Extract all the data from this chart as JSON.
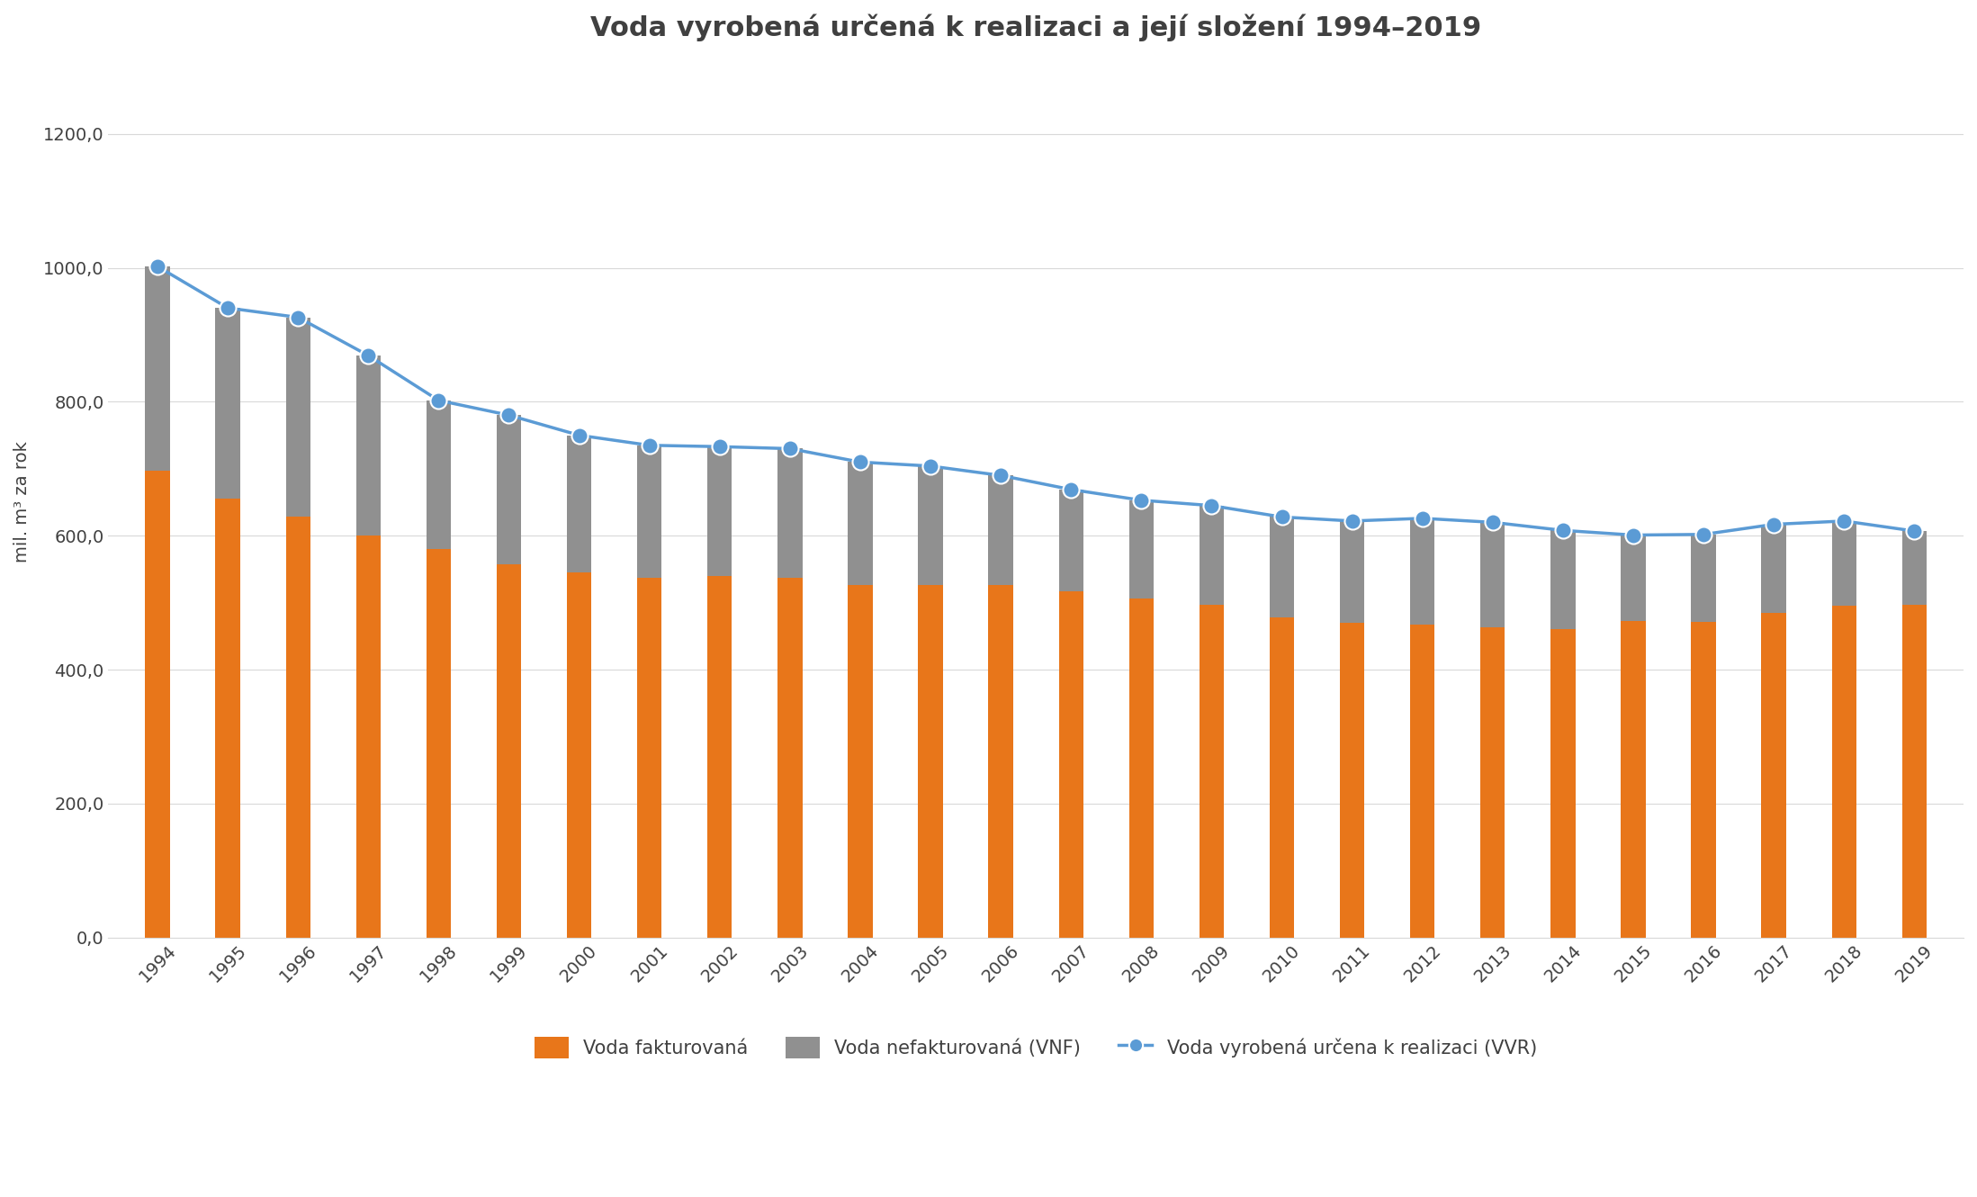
{
  "title": "Voda vyrobená určená k realizaci a její složení 1994–2019",
  "ylabel": "mil. m³ za rok",
  "years": [
    1994,
    1995,
    1996,
    1997,
    1998,
    1999,
    2000,
    2001,
    2002,
    2003,
    2004,
    2005,
    2006,
    2007,
    2008,
    2009,
    2010,
    2011,
    2012,
    2013,
    2014,
    2015,
    2016,
    2017,
    2018,
    2019
  ],
  "voda_fakturovana": [
    697,
    655,
    628,
    601,
    580,
    558,
    545,
    537,
    540,
    537,
    527,
    527,
    527,
    517,
    506,
    497,
    478,
    470,
    468,
    463,
    460,
    473,
    472,
    485,
    495,
    497
  ],
  "voda_nefakturovana": [
    305,
    285,
    298,
    268,
    222,
    222,
    205,
    198,
    193,
    193,
    183,
    177,
    163,
    152,
    147,
    148,
    150,
    152,
    158,
    157,
    148,
    128,
    130,
    132,
    127,
    110
  ],
  "vvr": [
    1002,
    940,
    926,
    869,
    802,
    780,
    750,
    735,
    733,
    730,
    710,
    704,
    690,
    669,
    653,
    645,
    628,
    622,
    626,
    620,
    608,
    601,
    602,
    617,
    622,
    607
  ],
  "bar_color_fakturovana": "#E8761A",
  "bar_color_nefakturovana": "#909090",
  "line_color_vvr": "#5B9BD5",
  "marker_color_vvr": "#5B9BD5",
  "background_color": "#FFFFFF",
  "grid_color": "#D9D9D9",
  "legend_fakturovana": "Voda fakturovaná",
  "legend_nefakturovana": "Voda nefakturovaná (VNF)",
  "legend_vvr": "Voda vyrobená určena k realizaci (VVR)",
  "ylim_min": 0,
  "ylim_max": 1300,
  "yticks": [
    0,
    200,
    400,
    600,
    800,
    1000,
    1200
  ],
  "ytick_labels": [
    "0,0",
    "200,0",
    "400,0",
    "600,0",
    "800,0",
    "1000,0",
    "1200,0"
  ],
  "title_fontsize": 22,
  "axis_fontsize": 14,
  "tick_fontsize": 14,
  "legend_fontsize": 15
}
